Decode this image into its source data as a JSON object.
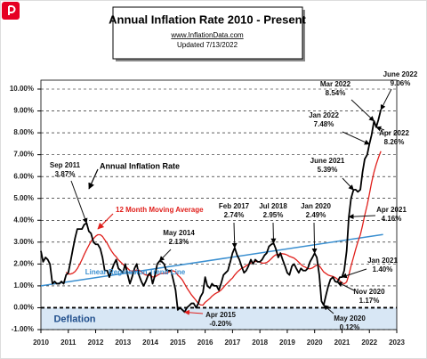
{
  "chart_data": {
    "type": "line",
    "title": "Annual  Inflation Rate 2010 - Present",
    "subtitle": "www.InflationData.com",
    "updated": "Updated   7/13/2022",
    "deflation_label": "Deflation",
    "xlim": [
      2010,
      2023
    ],
    "xticks": [
      2010,
      2011,
      2012,
      2013,
      2014,
      2015,
      2016,
      2017,
      2018,
      2019,
      2020,
      2021,
      2022,
      2023
    ],
    "ylim": [
      -1,
      10
    ],
    "yticks": [
      {
        "value": -1,
        "label": "-1.00%"
      },
      {
        "value": 0,
        "label": "0.00%"
      },
      {
        "value": 1,
        "label": "1.00%"
      },
      {
        "value": 2,
        "label": "2.00%"
      },
      {
        "value": 3,
        "label": "3.00%"
      },
      {
        "value": 4,
        "label": "4.00%"
      },
      {
        "value": 5,
        "label": "5.00%"
      },
      {
        "value": 6,
        "label": "6.00%"
      },
      {
        "value": 7,
        "label": "7.00%"
      },
      {
        "value": 8,
        "label": "8.00%"
      },
      {
        "value": 9,
        "label": "9.00%"
      },
      {
        "value": 10,
        "label": "10.00%"
      }
    ],
    "grid": true,
    "x": [
      2010,
      2010.08,
      2010.17,
      2010.25,
      2010.33,
      2010.42,
      2010.5,
      2010.58,
      2010.67,
      2010.75,
      2010.83,
      2010.92,
      2011,
      2011.08,
      2011.17,
      2011.25,
      2011.33,
      2011.42,
      2011.5,
      2011.58,
      2011.67,
      2011.75,
      2011.83,
      2011.92,
      2012,
      2012.08,
      2012.17,
      2012.25,
      2012.33,
      2012.42,
      2012.5,
      2012.58,
      2012.67,
      2012.75,
      2012.83,
      2012.92,
      2013,
      2013.08,
      2013.17,
      2013.25,
      2013.33,
      2013.42,
      2013.5,
      2013.58,
      2013.67,
      2013.75,
      2013.83,
      2013.92,
      2014,
      2014.08,
      2014.17,
      2014.25,
      2014.33,
      2014.42,
      2014.5,
      2014.58,
      2014.67,
      2014.75,
      2014.83,
      2014.92,
      2015,
      2015.08,
      2015.17,
      2015.25,
      2015.33,
      2015.42,
      2015.5,
      2015.58,
      2015.67,
      2015.75,
      2015.83,
      2015.92,
      2016,
      2016.08,
      2016.17,
      2016.25,
      2016.33,
      2016.42,
      2016.5,
      2016.58,
      2016.67,
      2016.75,
      2016.83,
      2016.92,
      2017,
      2017.08,
      2017.17,
      2017.25,
      2017.33,
      2017.42,
      2017.5,
      2017.58,
      2017.67,
      2017.75,
      2017.83,
      2017.92,
      2018,
      2018.08,
      2018.17,
      2018.25,
      2018.33,
      2018.42,
      2018.5,
      2018.58,
      2018.67,
      2018.75,
      2018.83,
      2018.92,
      2019,
      2019.08,
      2019.17,
      2019.25,
      2019.33,
      2019.42,
      2019.5,
      2019.58,
      2019.67,
      2019.75,
      2019.83,
      2019.92,
      2020,
      2020.08,
      2020.17,
      2020.25,
      2020.33,
      2020.42,
      2020.5,
      2020.58,
      2020.67,
      2020.75,
      2020.83,
      2020.92,
      2021,
      2021.08,
      2021.17,
      2021.25,
      2021.33,
      2021.42,
      2021.5,
      2021.58,
      2021.67,
      2021.75,
      2021.83,
      2021.92,
      2022,
      2022.08,
      2022.17,
      2022.25,
      2022.33,
      2022.42
    ],
    "series": [
      {
        "name": "Annual Inflation Rate",
        "color": "#000000",
        "values": [
          2.6,
          2.1,
          2.3,
          2.2,
          2.0,
          1.1,
          1.2,
          1.1,
          1.1,
          1.2,
          1.1,
          1.5,
          1.6,
          2.1,
          2.7,
          3.2,
          3.6,
          3.6,
          3.6,
          3.8,
          3.87,
          3.5,
          3.4,
          3.0,
          2.9,
          2.9,
          2.7,
          2.3,
          1.7,
          1.7,
          1.4,
          1.7,
          2.0,
          2.2,
          1.8,
          1.7,
          1.6,
          2.0,
          1.5,
          1.1,
          1.4,
          1.8,
          2.0,
          1.5,
          1.2,
          1.0,
          1.2,
          1.5,
          1.6,
          1.1,
          1.5,
          2.0,
          2.13,
          2.1,
          2.0,
          1.7,
          1.7,
          1.7,
          1.3,
          0.8,
          -0.1,
          0.0,
          -0.1,
          -0.2,
          0.0,
          0.1,
          0.2,
          0.2,
          0.0,
          0.2,
          0.5,
          0.7,
          1.4,
          1.0,
          0.9,
          1.1,
          1.0,
          1.0,
          0.8,
          1.1,
          1.5,
          1.6,
          1.7,
          2.1,
          2.5,
          2.74,
          2.4,
          2.2,
          1.9,
          1.6,
          1.7,
          1.9,
          2.2,
          2.0,
          2.2,
          2.1,
          2.1,
          2.2,
          2.4,
          2.5,
          2.8,
          2.9,
          2.95,
          2.7,
          2.3,
          2.5,
          2.2,
          1.9,
          1.6,
          1.5,
          1.9,
          2.0,
          1.8,
          1.6,
          1.8,
          1.7,
          1.7,
          1.8,
          2.1,
          2.3,
          2.49,
          2.3,
          1.5,
          0.3,
          0.12,
          0.6,
          1.0,
          1.3,
          1.4,
          1.2,
          1.17,
          1.4,
          1.4,
          1.7,
          2.6,
          4.16,
          5.0,
          5.39,
          5.4,
          5.3,
          5.4,
          6.2,
          6.8,
          7.0,
          7.48,
          7.9,
          8.54,
          8.26,
          8.6,
          9.06
        ]
      },
      {
        "name": "12 Month Moving Average",
        "color": "#e0201c",
        "values": [
          null,
          null,
          null,
          null,
          null,
          null,
          null,
          null,
          null,
          null,
          null,
          1.63,
          1.54,
          1.54,
          1.58,
          1.66,
          1.79,
          2.0,
          2.2,
          2.43,
          2.66,
          2.85,
          3.04,
          3.16,
          3.27,
          3.34,
          3.34,
          3.26,
          3.11,
          2.95,
          2.76,
          2.59,
          2.43,
          2.33,
          2.19,
          2.08,
          1.98,
          1.9,
          1.8,
          1.7,
          1.68,
          1.68,
          1.73,
          1.72,
          1.65,
          1.55,
          1.5,
          1.48,
          1.48,
          1.41,
          1.41,
          1.48,
          1.54,
          1.57,
          1.57,
          1.59,
          1.63,
          1.69,
          1.69,
          1.64,
          1.49,
          1.4,
          1.27,
          1.09,
          0.91,
          0.74,
          0.59,
          0.47,
          0.33,
          0.2,
          0.13,
          0.12,
          0.25,
          0.33,
          0.42,
          0.53,
          0.61,
          0.68,
          0.73,
          0.81,
          0.93,
          1.05,
          1.15,
          1.27,
          1.36,
          1.5,
          1.63,
          1.72,
          1.8,
          1.85,
          1.92,
          1.99,
          2.05,
          2.08,
          2.12,
          2.12,
          2.09,
          2.04,
          2.04,
          2.07,
          2.14,
          2.25,
          2.35,
          2.42,
          2.43,
          2.47,
          2.47,
          2.45,
          2.41,
          2.35,
          2.31,
          2.27,
          2.19,
          2.08,
          1.98,
          1.9,
          1.85,
          1.79,
          1.78,
          1.82,
          1.89,
          1.96,
          1.92,
          1.78,
          1.64,
          1.56,
          1.49,
          1.46,
          1.43,
          1.38,
          1.31,
          1.23,
          1.14,
          1.09,
          1.18,
          1.5,
          1.91,
          2.31,
          2.68,
          3.01,
          3.34,
          3.76,
          4.23,
          4.7,
          5.2,
          5.72,
          6.21,
          6.56,
          6.86,
          7.16
        ]
      },
      {
        "name": "Linear Regression Trend Line",
        "color": "#3a8fd0",
        "x": [
          2010,
          2022.5
        ],
        "values": [
          1.0,
          3.35
        ]
      }
    ],
    "annotations": [
      {
        "text": "Sep 2011",
        "x": 2011.67,
        "value": 3.87,
        "label": "3.87%"
      },
      {
        "text": "May 2014",
        "x": 2014.33,
        "value": 2.13,
        "label": "2.13%"
      },
      {
        "text": "Apr 2015",
        "x": 2015.25,
        "value": -0.2,
        "label": "-0.20%"
      },
      {
        "text": "Feb 2017",
        "x": 2017.08,
        "value": 2.74,
        "label": "2.74%"
      },
      {
        "text": "Jul 2018",
        "x": 2018.5,
        "value": 2.95,
        "label": "2.95%"
      },
      {
        "text": "Jan 2020",
        "x": 2020,
        "value": 2.49,
        "label": "2.49%"
      },
      {
        "text": "May 2020",
        "x": 2020.33,
        "value": 0.12,
        "label": "0.12%"
      },
      {
        "text": "Nov 2020",
        "x": 2020.83,
        "value": 1.17,
        "label": "1.17%"
      },
      {
        "text": "Jan 2021",
        "x": 2021,
        "value": 1.4,
        "label": "1.40%"
      },
      {
        "text": "Apr 2021",
        "x": 2021.25,
        "value": 4.16,
        "label": "4.16%"
      },
      {
        "text": "June 2021",
        "x": 2021.42,
        "value": 5.39,
        "label": "5.39%"
      },
      {
        "text": "Jan 2022",
        "x": 2022,
        "value": 7.48,
        "label": "7.48%"
      },
      {
        "text": "Mar 2022",
        "x": 2022.17,
        "value": 8.54,
        "label": "8.54%"
      },
      {
        "text": "Apr 2022",
        "x": 2022.25,
        "value": 8.26,
        "label": "8.26%"
      },
      {
        "text": "June 2022",
        "x": 2022.42,
        "value": 9.06,
        "label": "9.06%"
      }
    ]
  }
}
